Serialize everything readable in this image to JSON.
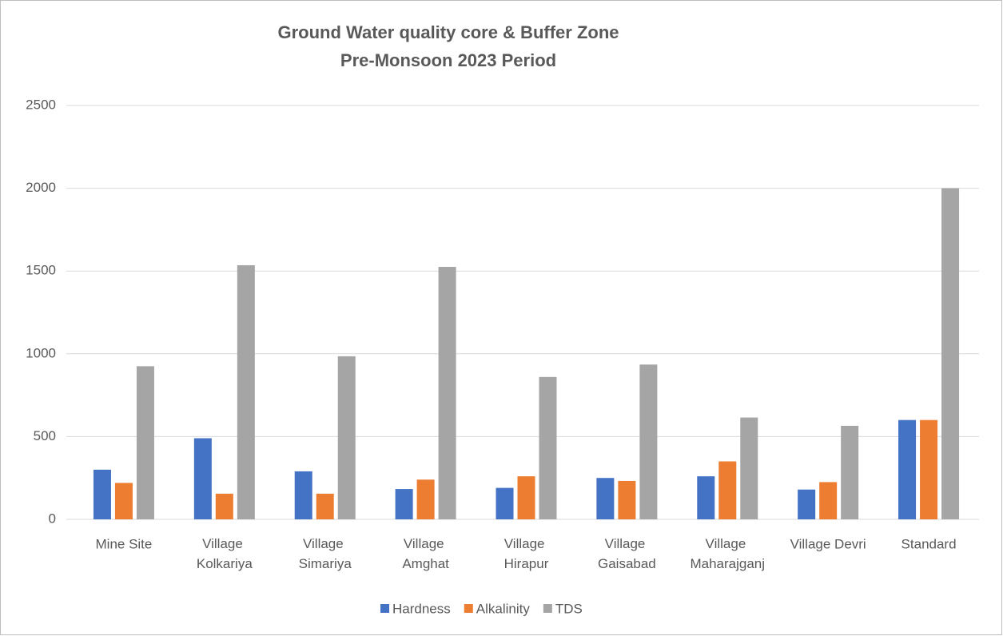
{
  "chart_data": {
    "type": "bar",
    "title": "Ground Water quality core & Buffer Zone",
    "subtitle": "Pre-Monsoon 2023 Period",
    "categories": [
      "Mine Site",
      "Village Kolkariya",
      "Village Simariya",
      "Village Amghat",
      "Village Hirapur",
      "Village Gaisabad",
      "Village Maharajganj",
      "Village Devri",
      "Standard"
    ],
    "series": [
      {
        "name": "Hardness",
        "color": "#4472c4",
        "values": [
          300,
          490,
          290,
          183,
          190,
          250,
          260,
          180,
          600
        ]
      },
      {
        "name": "Alkalinity",
        "color": "#ed7d31",
        "values": [
          220,
          155,
          155,
          240,
          260,
          232,
          350,
          225,
          600
        ]
      },
      {
        "name": "TDS",
        "color": "#a5a5a5",
        "values": [
          925,
          1535,
          985,
          1525,
          860,
          935,
          615,
          565,
          2000
        ]
      }
    ],
    "ylim": [
      0,
      2500
    ],
    "yticks": [
      0,
      500,
      1000,
      1500,
      2000,
      2500
    ],
    "grid": true,
    "legend": "bottom"
  }
}
